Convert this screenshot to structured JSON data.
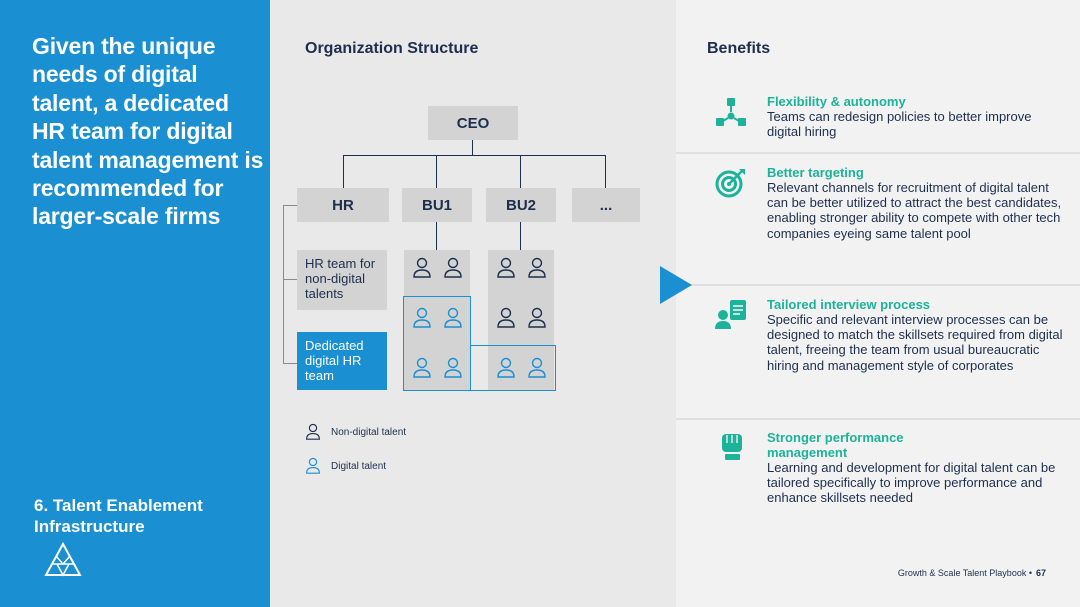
{
  "left": {
    "headline": "Given the unique needs of digital talent, a dedicated HR team for digital talent management is recommended for larger-scale firms",
    "section": "6. Talent Enablement Infrastructure"
  },
  "org": {
    "title": "Organization Structure",
    "ceo": "CEO",
    "units": [
      "HR",
      "BU1",
      "BU2",
      "..."
    ],
    "hr_nondigital": "HR team for non-digital talents",
    "hr_digital": "Dedicated digital HR team",
    "legend": {
      "non_digital": "Non-digital talent",
      "digital": "Digital talent"
    }
  },
  "benefits": {
    "title": "Benefits",
    "items": [
      {
        "icon": "network-icon",
        "title": "Flexibility & autonomy",
        "desc": "Teams can redesign policies to better improve digital hiring"
      },
      {
        "icon": "target-icon",
        "title": "Better targeting",
        "desc": "Relevant channels for recruitment of digital talent can be better utilized to attract the best candidates, enabling stronger ability to compete with other tech companies eyeing same talent pool"
      },
      {
        "icon": "interview-icon",
        "title": "Tailored interview process",
        "desc": "Specific and relevant interview processes can be designed to match the skillsets required from digital talent, freeing the team from usual bureaucratic hiring and management style of corporates"
      },
      {
        "icon": "fist-icon",
        "title": "Stronger performance management",
        "desc": "Learning and development for digital talent can be tailored specifically to improve performance and enhance skillsets needed"
      }
    ]
  },
  "footer": {
    "text": "Growth & Scale Talent Playbook  •",
    "page": "67"
  },
  "colors": {
    "blue": "#1a8fd1",
    "navy": "#1d2f4d",
    "teal": "#1db29a",
    "gray_box": "#d3d3d3"
  }
}
